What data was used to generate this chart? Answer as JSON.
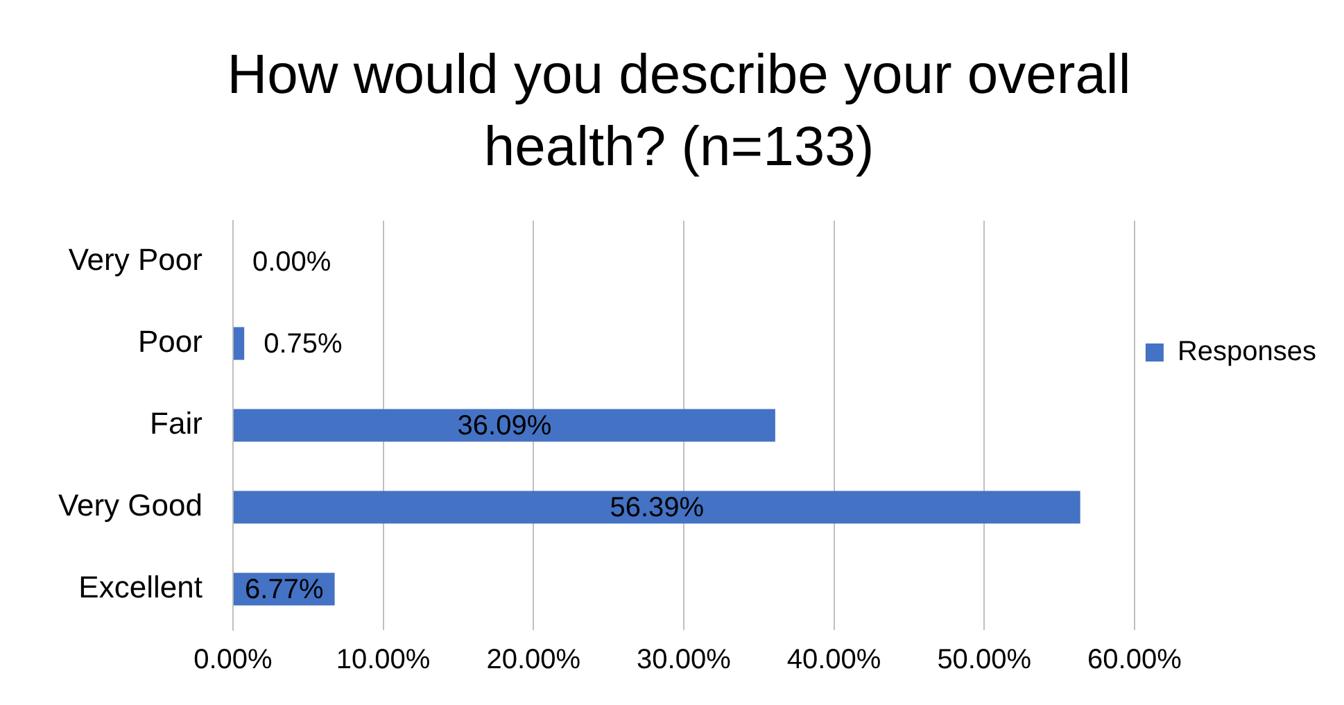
{
  "chart_data": {
    "type": "bar",
    "orientation": "horizontal",
    "title": "How would you describe your overall health? (n=133)",
    "categories": [
      "Very Poor",
      "Poor",
      "Fair",
      "Very Good",
      "Excellent"
    ],
    "series": [
      {
        "name": "Responses",
        "color": "#4472c4",
        "values": [
          0,
          0.75,
          36.09,
          56.39,
          6.77
        ],
        "value_labels": [
          "0.00%",
          "0.75%",
          "36.09%",
          "56.39%",
          "6.77%"
        ]
      }
    ],
    "xlim": [
      0,
      60
    ],
    "xticks": [
      {
        "value": 0,
        "label": "0.00%"
      },
      {
        "value": 10,
        "label": "10.00%"
      },
      {
        "value": 20,
        "label": "20.00%"
      },
      {
        "value": 30,
        "label": "30.00%"
      },
      {
        "value": 40,
        "label": "40.00%"
      },
      {
        "value": 50,
        "label": "50.00%"
      },
      {
        "value": 60,
        "label": "60.00%"
      }
    ],
    "grid": "x",
    "legend": "right"
  }
}
